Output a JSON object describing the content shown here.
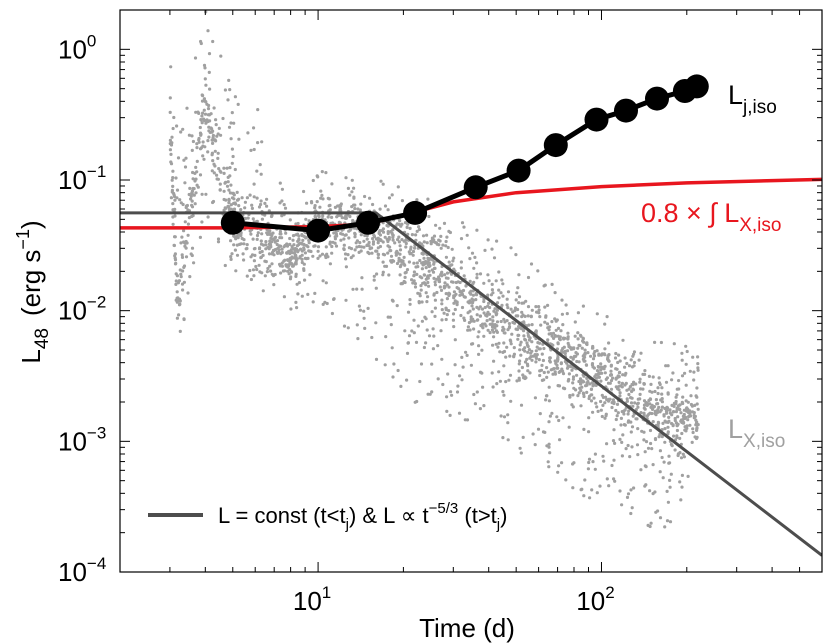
{
  "chart_data": {
    "type": "line",
    "x_scale": "log",
    "y_scale": "log",
    "xlim": [
      2.0,
      600
    ],
    "ylim": [
      0.0001,
      2.0
    ],
    "grid": false,
    "xlabel": "Time  (d)",
    "ylabel": {
      "main": "L",
      "sub": "48",
      "units_open": "(erg s",
      "units_sup": "−1",
      "units_close": ")"
    },
    "x_ticks": [
      {
        "value": 10,
        "base": "10",
        "exp": "1"
      },
      {
        "value": 100,
        "base": "10",
        "exp": "2"
      }
    ],
    "y_ticks": [
      {
        "value": 1,
        "base": "10",
        "exp": "0"
      },
      {
        "value": 0.1,
        "base": "10",
        "exp": "−1"
      },
      {
        "value": 0.01,
        "base": "10",
        "exp": "−2"
      },
      {
        "value": 0.001,
        "base": "10",
        "exp": "−3"
      },
      {
        "value": 0.0001,
        "base": "10",
        "exp": "−4"
      }
    ],
    "series": [
      {
        "name": "L_j,iso",
        "kind": "markers+line",
        "color": "#000000",
        "x": [
          5.0,
          10.0,
          15.0,
          22.0,
          36.0,
          51.0,
          69.0,
          96.0,
          122.0,
          157.0,
          197.0,
          217.0
        ],
        "y": [
          0.047,
          0.041,
          0.047,
          0.056,
          0.088,
          0.118,
          0.185,
          0.29,
          0.34,
          0.42,
          0.48,
          0.52
        ]
      },
      {
        "name": "0.8 × ∫ L_X,iso",
        "kind": "line",
        "color": "#e8161e",
        "x": [
          2.0,
          5.0,
          10.0,
          15.0,
          20.0,
          30.0,
          50.0,
          100.0,
          200.0,
          400.0,
          600.0
        ],
        "y": [
          0.043,
          0.043,
          0.044,
          0.046,
          0.054,
          0.068,
          0.08,
          0.089,
          0.095,
          0.099,
          0.101
        ]
      },
      {
        "name": "L = const (t<t_j) & L ∝ t^−5/3 (t>t_j)",
        "kind": "line",
        "color": "#4d4d4d",
        "x": [
          2.0,
          16.0,
          600.0
        ],
        "y": [
          0.056,
          0.056,
          0.000134
        ]
      },
      {
        "name": "L_X,iso",
        "kind": "scatter",
        "color": "#a0a0a0",
        "envelope": [
          {
            "x": 3.0,
            "hi": 1.4,
            "lo": 0.1,
            "typ": 0.3
          },
          {
            "x": 3.2,
            "hi": 0.2,
            "lo": 0.004,
            "typ": 0.012
          },
          {
            "x": 4.0,
            "hi": 2.0,
            "lo": 0.05,
            "typ": 0.4
          },
          {
            "x": 5.0,
            "hi": 0.5,
            "lo": 0.015,
            "typ": 0.05
          },
          {
            "x": 6.0,
            "hi": 0.4,
            "lo": 0.015,
            "typ": 0.04
          },
          {
            "x": 8.0,
            "hi": 0.06,
            "lo": 0.01,
            "typ": 0.025
          },
          {
            "x": 10.0,
            "hi": 0.12,
            "lo": 0.012,
            "typ": 0.045
          },
          {
            "x": 15.0,
            "hi": 0.11,
            "lo": 0.005,
            "typ": 0.04
          },
          {
            "x": 20.0,
            "hi": 0.1,
            "lo": 0.002,
            "typ": 0.03
          },
          {
            "x": 30.0,
            "hi": 0.06,
            "lo": 0.0015,
            "typ": 0.015
          },
          {
            "x": 50.0,
            "hi": 0.03,
            "lo": 0.0008,
            "typ": 0.007
          },
          {
            "x": 80.0,
            "hi": 0.012,
            "lo": 0.0004,
            "typ": 0.004
          },
          {
            "x": 120.0,
            "hi": 0.008,
            "lo": 0.0003,
            "typ": 0.0025
          },
          {
            "x": 170.0,
            "hi": 0.006,
            "lo": 0.00018,
            "typ": 0.0015
          },
          {
            "x": 220.0,
            "hi": 0.005,
            "lo": 0.0008,
            "typ": 0.0015
          }
        ]
      }
    ],
    "labels": {
      "ljiso": {
        "main": "L",
        "sub": "j,iso"
      },
      "integral": {
        "pre": "0.8 × ∫ L",
        "sub": "X,iso"
      },
      "lxiso": {
        "main": "L",
        "sub": "X,iso"
      }
    },
    "legend": {
      "placement": "bottom-left",
      "text": {
        "part1": "L = const (t<t",
        "sub1": "j",
        "part2": ") & L ∝ t",
        "sup": "−5/3",
        "part3": " (t>t",
        "sub2": "j",
        "part4": ")"
      }
    }
  }
}
